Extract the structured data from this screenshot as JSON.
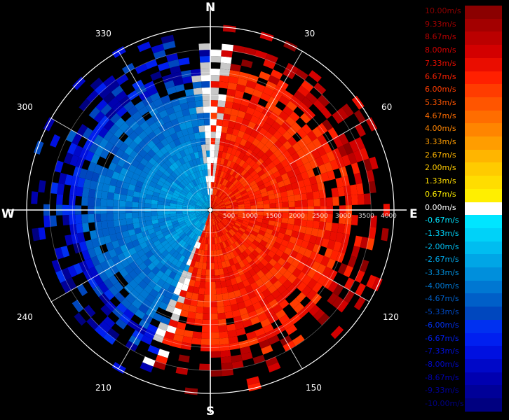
{
  "chart_data": {
    "type": "heatmap",
    "subtype": "polar-range-azimuth",
    "cardinals": {
      "north": "N",
      "south": "S",
      "east": "E",
      "west": "W"
    },
    "bearing_labels": [
      "30",
      "60",
      "120",
      "150",
      "210",
      "240",
      "300",
      "330"
    ],
    "range_labels": [
      "500",
      "1000",
      "1500",
      "2000",
      "2500",
      "3000",
      "3500",
      "4000"
    ],
    "rmax": 4000,
    "grid": true,
    "legend_placement": "right",
    "legend": [
      {
        "label": "10.00m/s",
        "color": "#8b0000"
      },
      {
        "label": "9.33m/s",
        "color": "#a30000"
      },
      {
        "label": "8.67m/s",
        "color": "#bb0000"
      },
      {
        "label": "8.00m/s",
        "color": "#d30000"
      },
      {
        "label": "7.33m/s",
        "color": "#ea0d00"
      },
      {
        "label": "6.67m/s",
        "color": "#ff2000"
      },
      {
        "label": "6.00m/s",
        "color": "#ff3c00"
      },
      {
        "label": "5.33m/s",
        "color": "#ff5500"
      },
      {
        "label": "4.67m/s",
        "color": "#ff6d00"
      },
      {
        "label": "4.00m/s",
        "color": "#ff8500"
      },
      {
        "label": "3.33m/s",
        "color": "#ff9d00"
      },
      {
        "label": "2.67m/s",
        "color": "#ffb500"
      },
      {
        "label": "2.00m/s",
        "color": "#ffcb00"
      },
      {
        "label": "1.33m/s",
        "color": "#ffdd00"
      },
      {
        "label": "0.67m/s",
        "color": "#ffef00"
      },
      {
        "label": "0.00m/s",
        "color": "#ffffff"
      },
      {
        "label": "-0.67m/s",
        "color": "#00e5ff"
      },
      {
        "label": "-1.33m/s",
        "color": "#00d2f8"
      },
      {
        "label": "-2.00m/s",
        "color": "#00bdf0"
      },
      {
        "label": "-2.67m/s",
        "color": "#00a6e6"
      },
      {
        "label": "-3.33m/s",
        "color": "#008fdc"
      },
      {
        "label": "-4.00m/s",
        "color": "#0077d2"
      },
      {
        "label": "-4.67m/s",
        "color": "#005fc8"
      },
      {
        "label": "-5.33m/s",
        "color": "#0047be"
      },
      {
        "label": "-6.00m/s",
        "color": "#0030f0"
      },
      {
        "label": "-6.67m/s",
        "color": "#001ff0"
      },
      {
        "label": "-7.33m/s",
        "color": "#0010e0"
      },
      {
        "label": "-8.00m/s",
        "color": "#0008c8"
      },
      {
        "label": "-8.67m/s",
        "color": "#0000b0"
      },
      {
        "label": "-9.33m/s",
        "color": "#000098"
      },
      {
        "label": "-10.00m/s",
        "color": "#000080"
      }
    ],
    "field_summary": "Radial velocity field: positive (receding, yellow-orange) over bearings ~0–200°, negative (approaching, cyan-blue) over ~200–360°; near-zero (white/grey) along the boundary; scattered returns at far range."
  }
}
